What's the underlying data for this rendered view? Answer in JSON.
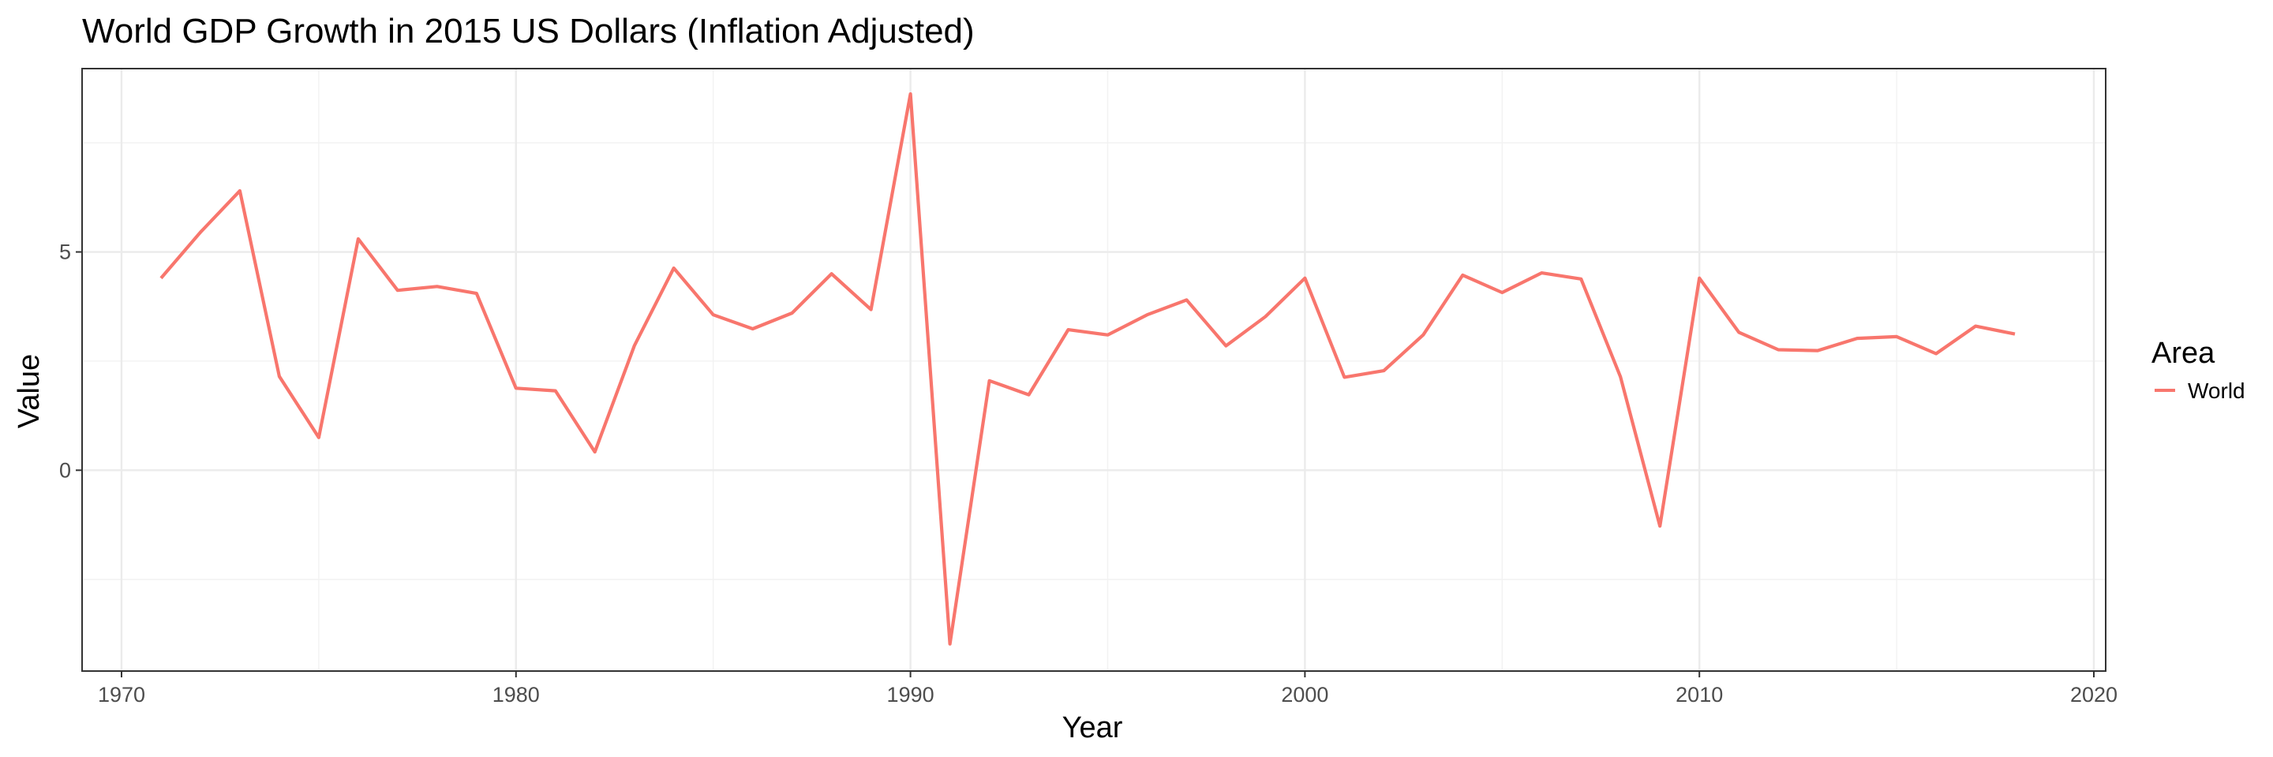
{
  "chart_data": {
    "type": "line",
    "title": "World GDP Growth in 2015 US Dollars (Inflation Adjusted)",
    "xlabel": "Year",
    "ylabel": "Value",
    "xlim": [
      1969,
      2020.3
    ],
    "ylim": [
      -4.6,
      9.2
    ],
    "x_ticks": [
      1970,
      1980,
      1990,
      2000,
      2010,
      2020
    ],
    "x_minor_ticks": [
      1975,
      1985,
      1995,
      2005,
      2015
    ],
    "y_ticks": [
      0,
      5
    ],
    "y_minor_ticks": [
      -2.5,
      2.5,
      7.5
    ],
    "grid": true,
    "legend": {
      "title": "Area",
      "position": "right"
    },
    "series": [
      {
        "name": "World",
        "color": "#F8766D",
        "x": [
          1971,
          1972,
          1973,
          1974,
          1975,
          1976,
          1977,
          1978,
          1979,
          1980,
          1981,
          1982,
          1983,
          1984,
          1985,
          1986,
          1987,
          1988,
          1989,
          1990,
          1991,
          1992,
          1993,
          1994,
          1995,
          1996,
          1997,
          1998,
          1999,
          2000,
          2001,
          2002,
          2003,
          2004,
          2005,
          2006,
          2007,
          2008,
          2009,
          2010,
          2011,
          2012,
          2013,
          2014,
          2015,
          2016,
          2017,
          2018
        ],
        "y": [
          4.4,
          5.45,
          6.4,
          2.15,
          0.75,
          5.3,
          4.12,
          4.21,
          4.05,
          1.88,
          1.82,
          0.42,
          2.85,
          4.63,
          3.56,
          3.24,
          3.6,
          4.5,
          3.68,
          8.62,
          -3.98,
          2.05,
          1.73,
          3.22,
          3.1,
          3.56,
          3.9,
          2.85,
          3.52,
          4.4,
          2.13,
          2.28,
          3.1,
          4.47,
          4.07,
          4.52,
          4.38,
          2.14,
          -1.28,
          4.4,
          3.16,
          2.76,
          2.74,
          3.02,
          3.06,
          2.67,
          3.3,
          3.12
        ]
      }
    ]
  }
}
